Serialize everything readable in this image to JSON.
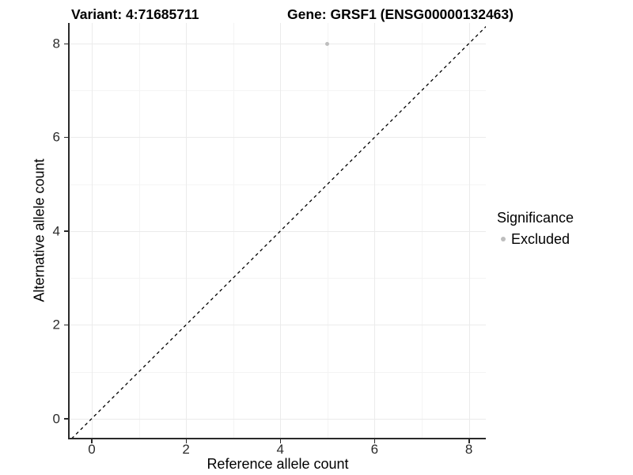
{
  "figure": {
    "title_variant": "Variant: 4:71685711",
    "title_gene": "Gene: GRSF1 (ENSG00000132463)"
  },
  "chart_data": {
    "type": "scatter",
    "title": "Variant: 4:71685711    Gene: GRSF1 (ENSG00000132463)",
    "xlabel": "Reference allele count",
    "ylabel": "Alternative allele count",
    "xlim": [
      -0.47,
      8.36
    ],
    "ylim": [
      -0.41,
      8.44
    ],
    "x_ticks": [
      0,
      2,
      4,
      6,
      8
    ],
    "y_ticks": [
      0,
      2,
      4,
      6,
      8
    ],
    "x_minor_ticks": [
      1,
      3,
      5,
      7
    ],
    "y_minor_ticks": [
      1,
      3,
      5,
      7
    ],
    "grid": "major+minor",
    "points": [
      {
        "x": 5,
        "y": 8,
        "series": "Excluded"
      }
    ],
    "identity_line": {
      "type": "abline",
      "slope": 1,
      "intercept": 0,
      "style": "dashed",
      "color": "#000000"
    },
    "legend": {
      "title": "Significance",
      "position": "right",
      "entries": [
        {
          "label": "Excluded",
          "color": "#bebebe"
        }
      ]
    },
    "colors": {
      "point_excluded": "#bebebe",
      "grid_major": "#ebebeb",
      "grid_minor": "#f4f4f4",
      "axis_line": "#2a2a2a",
      "tick_text": "#2b2b2b",
      "title_text": "#000000",
      "background": "#ffffff"
    }
  }
}
